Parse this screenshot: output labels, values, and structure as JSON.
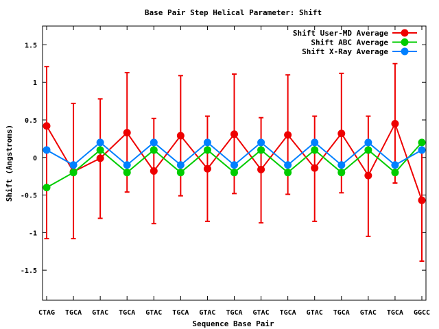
{
  "chart_data": {
    "type": "line",
    "title": "Base Pair Step Helical Parameter: Shift",
    "xlabel": "Sequence Base Pair",
    "ylabel": "Shift (Angstroms)",
    "ylim": [
      -1.9,
      1.75
    ],
    "yticks": [
      1.5,
      1,
      0.5,
      0,
      -0.5,
      -1,
      -1.5
    ],
    "ytick_labels": [
      "1.5",
      "1",
      "0.5",
      "0",
      "-0.5",
      "-1",
      "-1.5"
    ],
    "categories": [
      "CTAG",
      "TGCA",
      "GTAC",
      "TGCA",
      "GTAC",
      "TGCA",
      "GTAC",
      "TGCA",
      "GTAC",
      "TGCA",
      "GTAC",
      "TGCA",
      "GTAC",
      "TGCA",
      "GGCC"
    ],
    "legend_position": "top-right",
    "grid": false,
    "series": [
      {
        "name": "Shift User-MD Average",
        "color": "#ee0000",
        "values": [
          0.42,
          -0.19,
          -0.01,
          0.33,
          -0.18,
          0.29,
          -0.15,
          0.31,
          -0.16,
          0.3,
          -0.14,
          0.32,
          -0.24,
          0.45,
          -0.57
        ],
        "error_low": [
          -1.08,
          -1.08,
          -0.81,
          -0.46,
          -0.88,
          -0.51,
          -0.85,
          -0.48,
          -0.87,
          -0.49,
          -0.85,
          -0.47,
          -1.05,
          -0.34,
          -1.38
        ],
        "error_high": [
          1.21,
          0.72,
          0.78,
          1.13,
          0.52,
          1.09,
          0.55,
          1.11,
          0.53,
          1.1,
          0.55,
          1.12,
          0.55,
          1.25,
          0.1
        ]
      },
      {
        "name": "Shift ABC Average",
        "color": "#00cc00",
        "values": [
          -0.4,
          -0.2,
          0.1,
          -0.2,
          0.1,
          -0.2,
          0.1,
          -0.2,
          0.1,
          -0.2,
          0.1,
          -0.2,
          0.1,
          -0.2,
          0.2
        ]
      },
      {
        "name": "Shift X-Ray Average",
        "color": "#0080ff",
        "values": [
          0.1,
          -0.1,
          0.2,
          -0.1,
          0.2,
          -0.1,
          0.2,
          -0.1,
          0.2,
          -0.1,
          0.2,
          -0.1,
          0.2,
          -0.1,
          0.1
        ]
      }
    ]
  }
}
